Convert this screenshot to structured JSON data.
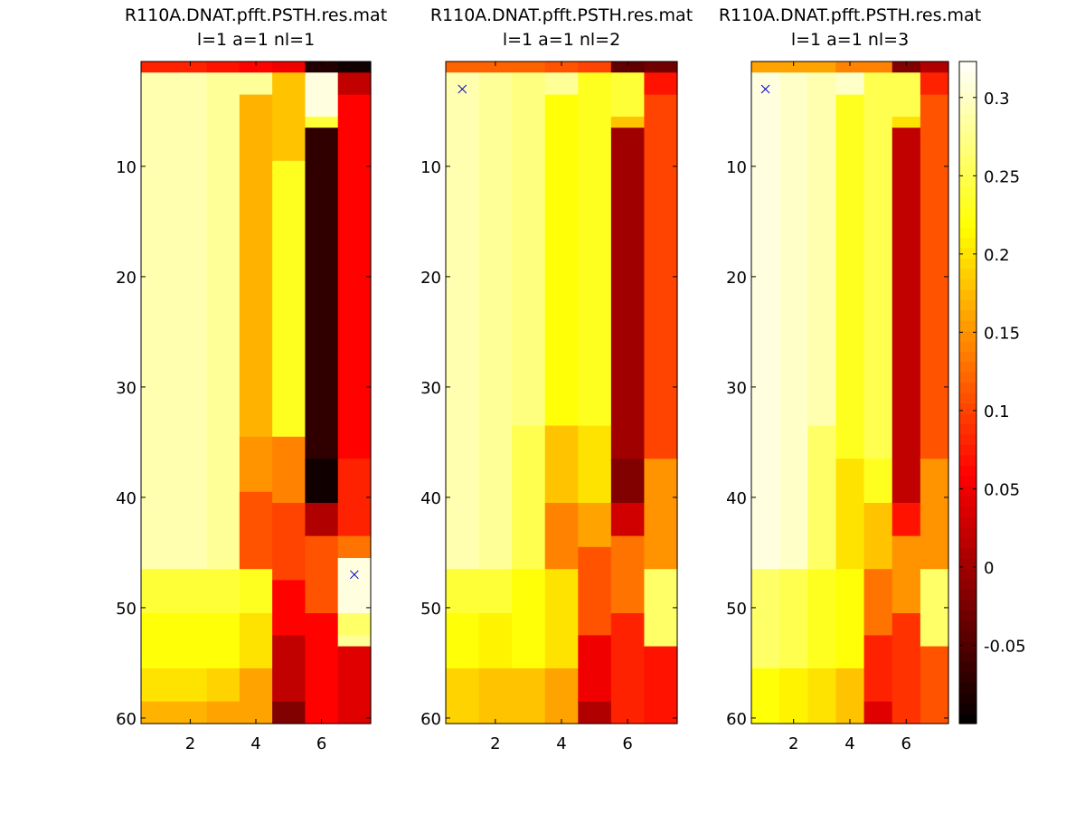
{
  "chart_data": [
    {
      "type": "heatmap",
      "title": "R110A.DNAT.pfft.PSTH.res.mat",
      "subtitle": "l=1 a=1 nl=1",
      "x_tick_labels": [
        "2",
        "4",
        "6"
      ],
      "y_tick_labels": [
        "10",
        "20",
        "30",
        "40",
        "50",
        "60"
      ],
      "x_range": [
        0.5,
        7.5
      ],
      "y_range": [
        0.5,
        60.5
      ],
      "y_axis_direction": "reversed",
      "grid": false,
      "colormap": "hot",
      "color_limits": [
        -0.1,
        0.323
      ],
      "marker": {
        "symbol": "x",
        "x": 7,
        "y": 47,
        "color": "#0000cc"
      },
      "columns": [
        {
          "x": 1,
          "segments": [
            [
              1,
              1,
              0.08
            ],
            [
              2,
              46,
              0.29
            ],
            [
              47,
              50,
              0.24
            ],
            [
              51,
              55,
              0.22
            ],
            [
              56,
              58,
              0.2
            ],
            [
              59,
              60,
              0.17
            ]
          ]
        },
        {
          "x": 2,
          "segments": [
            [
              1,
              1,
              0.08
            ],
            [
              2,
              46,
              0.29
            ],
            [
              47,
              50,
              0.24
            ],
            [
              51,
              55,
              0.22
            ],
            [
              56,
              58,
              0.2
            ],
            [
              59,
              60,
              0.17
            ]
          ]
        },
        {
          "x": 3,
          "segments": [
            [
              1,
              1,
              0.07
            ],
            [
              2,
              46,
              0.28
            ],
            [
              47,
              50,
              0.24
            ],
            [
              51,
              55,
              0.22
            ],
            [
              56,
              58,
              0.19
            ],
            [
              59,
              60,
              0.16
            ]
          ]
        },
        {
          "x": 4,
          "segments": [
            [
              1,
              1,
              0.06
            ],
            [
              2,
              3,
              0.28
            ],
            [
              4,
              34,
              0.17
            ],
            [
              35,
              39,
              0.15
            ],
            [
              40,
              46,
              0.11
            ],
            [
              47,
              50,
              0.23
            ],
            [
              51,
              55,
              0.2
            ],
            [
              56,
              60,
              0.16
            ]
          ]
        },
        {
          "x": 5,
          "segments": [
            [
              1,
              1,
              0.05
            ],
            [
              2,
              9,
              0.18
            ],
            [
              10,
              34,
              0.23
            ],
            [
              35,
              40,
              0.14
            ],
            [
              41,
              47,
              0.1
            ],
            [
              48,
              52,
              0.06
            ],
            [
              53,
              58,
              0.02
            ],
            [
              59,
              60,
              -0.02
            ]
          ]
        },
        {
          "x": 6,
          "segments": [
            [
              1,
              1,
              -0.08
            ],
            [
              2,
              5,
              0.31
            ],
            [
              6,
              6,
              0.24
            ],
            [
              7,
              36,
              -0.07
            ],
            [
              37,
              40,
              -0.09
            ],
            [
              41,
              43,
              0.01
            ],
            [
              44,
              50,
              0.11
            ],
            [
              51,
              60,
              0.06
            ]
          ]
        },
        {
          "x": 7,
          "segments": [
            [
              1,
              1,
              -0.09
            ],
            [
              2,
              3,
              0.02
            ],
            [
              4,
              27,
              0.06
            ],
            [
              28,
              36,
              0.06
            ],
            [
              37,
              43,
              0.08
            ],
            [
              44,
              45,
              0.13
            ],
            [
              46,
              50,
              0.31
            ],
            [
              51,
              52,
              0.26
            ],
            [
              53,
              53,
              0.28
            ],
            [
              54,
              60,
              0.04
            ]
          ]
        }
      ]
    },
    {
      "type": "heatmap",
      "title": "R110A.DNAT.pfft.PSTH.res.mat",
      "subtitle": "l=1 a=1 nl=2",
      "x_tick_labels": [
        "2",
        "4",
        "6"
      ],
      "y_tick_labels": [
        "10",
        "20",
        "30",
        "40",
        "50",
        "60"
      ],
      "x_range": [
        0.5,
        7.5
      ],
      "y_range": [
        0.5,
        60.5
      ],
      "y_axis_direction": "reversed",
      "grid": false,
      "colormap": "hot",
      "color_limits": [
        -0.1,
        0.323
      ],
      "marker": {
        "symbol": "x",
        "x": 1,
        "y": 3,
        "color": "#0000cc"
      },
      "columns": [
        {
          "x": 1,
          "segments": [
            [
              1,
              1,
              0.12
            ],
            [
              2,
              46,
              0.29
            ],
            [
              47,
              50,
              0.24
            ],
            [
              51,
              55,
              0.22
            ],
            [
              56,
              60,
              0.19
            ]
          ]
        },
        {
          "x": 2,
          "segments": [
            [
              1,
              1,
              0.12
            ],
            [
              2,
              46,
              0.28
            ],
            [
              47,
              50,
              0.24
            ],
            [
              51,
              55,
              0.21
            ],
            [
              56,
              60,
              0.18
            ]
          ]
        },
        {
          "x": 3,
          "segments": [
            [
              1,
              1,
              0.12
            ],
            [
              2,
              33,
              0.27
            ],
            [
              34,
              46,
              0.25
            ],
            [
              47,
              55,
              0.22
            ],
            [
              56,
              60,
              0.18
            ]
          ]
        },
        {
          "x": 4,
          "segments": [
            [
              1,
              1,
              0.11
            ],
            [
              2,
              3,
              0.28
            ],
            [
              4,
              33,
              0.22
            ],
            [
              34,
              40,
              0.18
            ],
            [
              41,
              46,
              0.14
            ],
            [
              47,
              55,
              0.2
            ],
            [
              56,
              60,
              0.16
            ]
          ]
        },
        {
          "x": 5,
          "segments": [
            [
              1,
              1,
              0.1
            ],
            [
              2,
              33,
              0.23
            ],
            [
              34,
              40,
              0.2
            ],
            [
              41,
              44,
              0.16
            ],
            [
              45,
              52,
              0.11
            ],
            [
              53,
              58,
              0.05
            ],
            [
              59,
              60,
              0.01
            ]
          ]
        },
        {
          "x": 6,
          "segments": [
            [
              1,
              1,
              -0.04
            ],
            [
              2,
              5,
              0.24
            ],
            [
              6,
              6,
              0.18
            ],
            [
              7,
              36,
              0.0
            ],
            [
              37,
              40,
              -0.02
            ],
            [
              41,
              43,
              0.03
            ],
            [
              44,
              50,
              0.13
            ],
            [
              51,
              60,
              0.08
            ]
          ]
        },
        {
          "x": 7,
          "segments": [
            [
              1,
              1,
              -0.03
            ],
            [
              2,
              3,
              0.07
            ],
            [
              4,
              36,
              0.1
            ],
            [
              37,
              46,
              0.15
            ],
            [
              47,
              53,
              0.26
            ],
            [
              54,
              60,
              0.07
            ]
          ]
        }
      ]
    },
    {
      "type": "heatmap",
      "title": "R110A.DNAT.pfft.PSTH.res.mat",
      "subtitle": "l=1 a=1 nl=3",
      "x_tick_labels": [
        "2",
        "4",
        "6"
      ],
      "y_tick_labels": [
        "10",
        "20",
        "30",
        "40",
        "50",
        "60"
      ],
      "x_range": [
        0.5,
        7.5
      ],
      "y_range": [
        0.5,
        60.5
      ],
      "y_axis_direction": "reversed",
      "grid": false,
      "colormap": "hot",
      "color_limits": [
        -0.1,
        0.323
      ],
      "marker": {
        "symbol": "x",
        "x": 1,
        "y": 3,
        "color": "#0000cc"
      },
      "columns": [
        {
          "x": 1,
          "segments": [
            [
              1,
              1,
              0.16
            ],
            [
              2,
              46,
              0.31
            ],
            [
              47,
              55,
              0.26
            ],
            [
              56,
              60,
              0.22
            ]
          ]
        },
        {
          "x": 2,
          "segments": [
            [
              1,
              1,
              0.16
            ],
            [
              2,
              46,
              0.3
            ],
            [
              47,
              55,
              0.25
            ],
            [
              56,
              60,
              0.21
            ]
          ]
        },
        {
          "x": 3,
          "segments": [
            [
              1,
              1,
              0.16
            ],
            [
              2,
              33,
              0.29
            ],
            [
              34,
              46,
              0.26
            ],
            [
              47,
              55,
              0.23
            ],
            [
              56,
              60,
              0.2
            ]
          ]
        },
        {
          "x": 4,
          "segments": [
            [
              1,
              1,
              0.14
            ],
            [
              2,
              3,
              0.3
            ],
            [
              4,
              36,
              0.23
            ],
            [
              37,
              46,
              0.2
            ],
            [
              47,
              55,
              0.22
            ],
            [
              56,
              60,
              0.18
            ]
          ]
        },
        {
          "x": 5,
          "segments": [
            [
              1,
              1,
              0.14
            ],
            [
              2,
              36,
              0.25
            ],
            [
              37,
              40,
              0.23
            ],
            [
              41,
              46,
              0.18
            ],
            [
              47,
              52,
              0.13
            ],
            [
              53,
              58,
              0.08
            ],
            [
              59,
              60,
              0.04
            ]
          ]
        },
        {
          "x": 6,
          "segments": [
            [
              1,
              1,
              -0.02
            ],
            [
              2,
              5,
              0.25
            ],
            [
              6,
              6,
              0.2
            ],
            [
              7,
              40,
              0.02
            ],
            [
              41,
              43,
              0.07
            ],
            [
              44,
              50,
              0.15
            ],
            [
              51,
              60,
              0.09
            ]
          ]
        },
        {
          "x": 7,
          "segments": [
            [
              1,
              1,
              0.01
            ],
            [
              2,
              3,
              0.08
            ],
            [
              4,
              36,
              0.11
            ],
            [
              37,
              46,
              0.15
            ],
            [
              47,
              53,
              0.26
            ],
            [
              54,
              60,
              0.11
            ]
          ]
        }
      ]
    }
  ],
  "colorbar": {
    "colormap": "hot",
    "limits": [
      -0.1,
      0.323
    ],
    "ticks": [
      {
        "value": 0.3,
        "label": "0.3"
      },
      {
        "value": 0.25,
        "label": "0.25"
      },
      {
        "value": 0.2,
        "label": "0.2"
      },
      {
        "value": 0.15,
        "label": "0.15"
      },
      {
        "value": 0.1,
        "label": "0.1"
      },
      {
        "value": 0.05,
        "label": "0.05"
      },
      {
        "value": 0,
        "label": "0"
      },
      {
        "value": -0.05,
        "label": "-0.05"
      }
    ]
  }
}
